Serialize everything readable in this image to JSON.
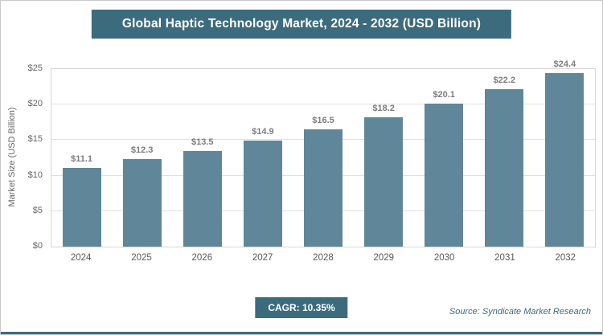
{
  "header": {
    "title": "Global Haptic Technology Market, 2024 - 2032 (USD Billion)"
  },
  "chart_data": {
    "type": "bar",
    "title": "Global Haptic Technology Market, 2024 - 2032 (USD Billion)",
    "categories": [
      "2024",
      "2025",
      "2026",
      "2027",
      "2028",
      "2029",
      "2030",
      "2031",
      "2032"
    ],
    "values": [
      11.1,
      12.3,
      13.5,
      14.9,
      16.5,
      18.2,
      20.1,
      22.2,
      24.4
    ],
    "value_labels": [
      "$11.1",
      "$12.3",
      "$13.5",
      "$14.9",
      "$16.5",
      "$18.2",
      "$20.1",
      "$22.2",
      "$24.4"
    ],
    "xlabel": "",
    "ylabel": "Market Size (USD Billion)",
    "ylim": [
      0,
      25
    ],
    "ytick_step": 5,
    "ytick_labels": [
      "$0",
      "$5",
      "$10",
      "$15",
      "$20",
      "$25"
    ],
    "grid": true,
    "legend": "none",
    "bar_color": "#5f8799",
    "accent_color": "#3d6b7e"
  },
  "footer": {
    "cagr_label": "CAGR: 10.35%",
    "source": "Source: Syndicate Market Research"
  }
}
